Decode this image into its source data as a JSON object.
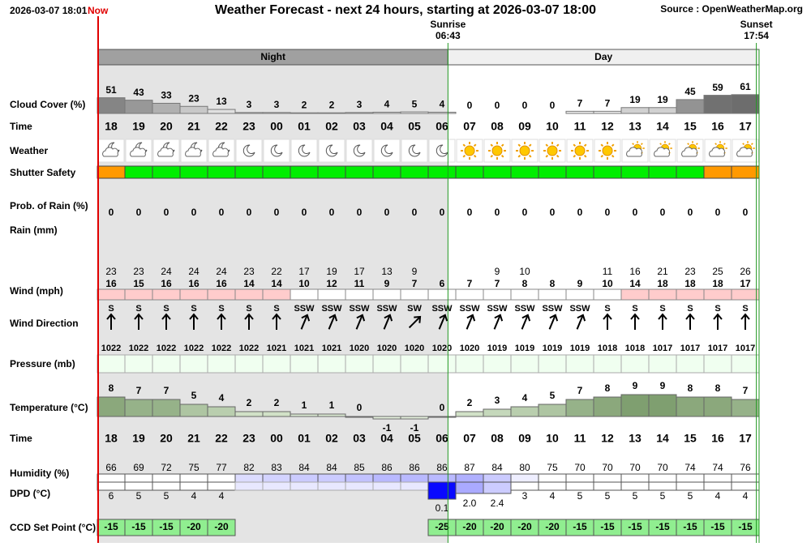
{
  "header": {
    "timestamp": "2026-03-07 18:01",
    "now": "Now",
    "title": "Weather Forecast - next 24 hours, starting at 2026-03-07 18:00",
    "source": "Source : OpenWeatherMap.org"
  },
  "sunrise": {
    "label": "Sunrise",
    "time": "06:43"
  },
  "sunset": {
    "label": "Sunset",
    "time": "17:54"
  },
  "periods": {
    "night": "Night",
    "day": "Day"
  },
  "labels": {
    "cloud_cover": "Cloud Cover (%)",
    "time": "Time",
    "weather": "Weather",
    "shutter_safety": "Shutter Safety",
    "prob_rain": "Prob. of Rain (%)",
    "rain": "Rain (mm)",
    "wind": "Wind (mph)",
    "wind_direction": "Wind Direction",
    "pressure": "Pressure (mb)",
    "temperature": "Temperature (°C)",
    "humidity": "Humidity (%)",
    "dpd": "DPD (°C)",
    "ccd": "CCD Set Point (°C)"
  },
  "hours": [
    "18",
    "19",
    "20",
    "21",
    "22",
    "23",
    "00",
    "01",
    "02",
    "03",
    "04",
    "05",
    "06",
    "07",
    "08",
    "09",
    "10",
    "11",
    "12",
    "13",
    "14",
    "15",
    "16",
    "17"
  ],
  "cloud_cover": [
    51,
    43,
    33,
    23,
    13,
    3,
    3,
    2,
    2,
    3,
    4,
    5,
    4,
    0,
    0,
    0,
    0,
    7,
    7,
    19,
    19,
    45,
    59,
    61
  ],
  "shutter_colors": [
    "#ff9900",
    "#00ee00",
    "#00ee00",
    "#00ee00",
    "#00ee00",
    "#00ee00",
    "#00ee00",
    "#00ee00",
    "#00ee00",
    "#00ee00",
    "#00ee00",
    "#00ee00",
    "#00ee00",
    "#00ee00",
    "#00ee00",
    "#00ee00",
    "#00ee00",
    "#00ee00",
    "#00ee00",
    "#00ee00",
    "#00ee00",
    "#00ee00",
    "#ff9900",
    "#ff9900"
  ],
  "prob_rain": [
    0,
    0,
    0,
    0,
    0,
    0,
    0,
    0,
    0,
    0,
    0,
    0,
    0,
    0,
    0,
    0,
    0,
    0,
    0,
    0,
    0,
    0,
    0,
    0
  ],
  "wind_gust": [
    23,
    23,
    24,
    24,
    24,
    23,
    22,
    17,
    19,
    17,
    13,
    9,
    null,
    null,
    9,
    10,
    null,
    null,
    11,
    16,
    21,
    23,
    25,
    26
  ],
  "wind_speed": [
    16,
    15,
    16,
    16,
    16,
    14,
    14,
    10,
    12,
    11,
    9,
    7,
    6,
    7,
    7,
    8,
    8,
    9,
    10,
    14,
    18,
    18,
    18,
    17
  ],
  "wind_colors": [
    "#ffcccc",
    "#ffcccc",
    "#ffcccc",
    "#ffcccc",
    "#ffcccc",
    "#ffcccc",
    "#ffcccc",
    "#ffffff",
    "#ffffff",
    "#ffffff",
    "#ffffff",
    "#ffffff",
    "#ffffff",
    "#ffffff",
    "#ffffff",
    "#ffffff",
    "#ffffff",
    "#ffffff",
    "#ffffff",
    "#ffcccc",
    "#ffcccc",
    "#ffcccc",
    "#ffcccc",
    "#ffcccc"
  ],
  "wind_direction": [
    "S",
    "S",
    "S",
    "S",
    "S",
    "S",
    "S",
    "SSW",
    "SSW",
    "SSW",
    "SSW",
    "SW",
    "SSW",
    "SSW",
    "SSW",
    "SSW",
    "SSW",
    "SSW",
    "S",
    "S",
    "S",
    "S",
    "S",
    "S"
  ],
  "pressure": [
    1022,
    1022,
    1022,
    1022,
    1022,
    1022,
    1021,
    1021,
    1021,
    1020,
    1020,
    1020,
    1020,
    1020,
    1019,
    1019,
    1019,
    1019,
    1018,
    1018,
    1017,
    1017,
    1017,
    1017
  ],
  "temperature": [
    8,
    7,
    7,
    5,
    4,
    2,
    2,
    1,
    1,
    0,
    -1,
    -1,
    0,
    2,
    3,
    4,
    5,
    7,
    8,
    9,
    9,
    8,
    8,
    7
  ],
  "humidity": [
    66,
    69,
    72,
    75,
    77,
    82,
    83,
    84,
    84,
    85,
    86,
    86,
    86,
    87,
    84,
    80,
    75,
    70,
    70,
    70,
    70,
    74,
    74,
    76
  ],
  "dpd": [
    "6",
    "5",
    "5",
    "4",
    "4",
    null,
    null,
    null,
    null,
    null,
    null,
    null,
    "0.1",
    "2.0",
    "2.4",
    "3",
    "4",
    "5",
    "5",
    "5",
    "5",
    "5",
    "4",
    "4"
  ],
  "ccd_set_point": [
    -15,
    -15,
    -15,
    -20,
    -20,
    null,
    null,
    null,
    null,
    null,
    null,
    null,
    -25,
    -20,
    -20,
    -20,
    -20,
    -15,
    -15,
    -15,
    -15,
    -15,
    -15,
    -15
  ]
}
